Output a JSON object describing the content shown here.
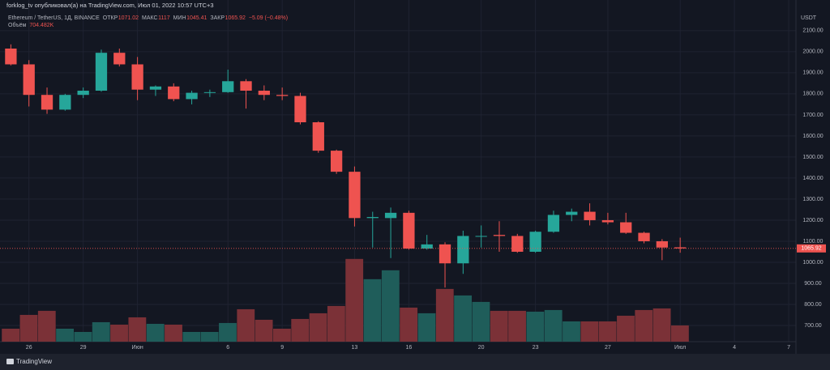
{
  "chart_data": {
    "type": "candlestick",
    "header": "forklog_tv опубликовал(а) на TradingView.com, Июл 01, 2022 10:57 UTC+3",
    "symbol": "Ethereum / TetherUS, 1Д, BINANCE",
    "open_label": "ОТКР",
    "high_label": "МАКС",
    "low_label": "МИН",
    "close_label": "ЗАКР",
    "change_label": "−5.09 (−0.48%)",
    "currency": "USDT",
    "brand": "TradingView",
    "x": [
      0,
      1,
      2,
      3,
      4,
      5,
      6,
      7,
      8,
      9,
      10,
      11,
      12,
      13,
      14,
      15,
      16,
      17,
      18,
      19,
      20,
      21,
      22,
      23,
      24,
      25,
      26,
      27,
      28,
      29,
      30,
      31,
      32,
      33,
      34,
      35,
      36,
      37
    ],
    "open": [
      2015,
      1940,
      1795,
      1725,
      1795,
      1815,
      1995,
      1940,
      1820,
      1835,
      1775,
      1805,
      1808,
      1860,
      1815,
      1795,
      1790,
      1665,
      1530,
      1430,
      1210,
      1210,
      1235,
      1065,
      1085,
      995,
      1125,
      1130,
      1125,
      1050,
      1145,
      1225,
      1240,
      1200,
      1190,
      1140,
      1100,
      1071.02
    ],
    "high": [
      2035,
      1960,
      1830,
      1800,
      1830,
      2010,
      2015,
      1975,
      1840,
      1850,
      1815,
      1820,
      1915,
      1870,
      1840,
      1830,
      1805,
      1670,
      1535,
      1455,
      1240,
      1260,
      1245,
      1130,
      1095,
      1150,
      1175,
      1195,
      1135,
      1150,
      1245,
      1255,
      1280,
      1235,
      1235,
      1145,
      1110,
      1117
    ],
    "low": [
      1935,
      1740,
      1705,
      1720,
      1780,
      1810,
      1930,
      1770,
      1790,
      1765,
      1750,
      1785,
      1805,
      1730,
      1770,
      1770,
      1655,
      1520,
      1420,
      1170,
      1070,
      1020,
      1060,
      1060,
      880,
      945,
      1070,
      1050,
      1045,
      1045,
      1140,
      1195,
      1175,
      1180,
      1135,
      1090,
      1010,
      1045.41
    ],
    "close": [
      1940,
      1795,
      1725,
      1795,
      1815,
      1995,
      1940,
      1820,
      1835,
      1775,
      1805,
      1808,
      1860,
      1815,
      1795,
      1790,
      1665,
      1530,
      1430,
      1210,
      1215,
      1235,
      1065,
      1085,
      995,
      1125,
      1125,
      1125,
      1050,
      1145,
      1225,
      1240,
      1200,
      1190,
      1140,
      1100,
      1070,
      1065.92
    ],
    "volume": {
      "name": "Объём",
      "values": [
        563,
        1162,
        1338,
        563,
        422,
        845,
        739,
        1056,
        774,
        739,
        422,
        422,
        810,
        1408,
        950,
        563,
        986,
        1232,
        1549,
        3590,
        2711,
        3098,
        1478,
        1232,
        2288,
        2006,
        1725,
        1338,
        1338,
        1302,
        1373,
        880,
        880,
        880,
        1126,
        1373,
        1443,
        704.482
      ],
      "value_labels": [
        null,
        null,
        null,
        null,
        null,
        null,
        null,
        null,
        null,
        null,
        null,
        null,
        null,
        null,
        null,
        null,
        null,
        null,
        null,
        null,
        null,
        null,
        null,
        null,
        null,
        null,
        null,
        null,
        null,
        null,
        null,
        null,
        null,
        null,
        null,
        null,
        null,
        "704.482K"
      ]
    },
    "up_color": "#26a69a",
    "down_color": "#ef5350",
    "volume_up_color": "#1f5d5a",
    "volume_down_color": "#7b3137",
    "xlim": [
      -0.6,
      43.4
    ],
    "xticks": [
      {
        "value": 1,
        "label": "26"
      },
      {
        "value": 4,
        "label": "29"
      },
      {
        "value": 7,
        "label": "Июн"
      },
      {
        "value": 12,
        "label": "6"
      },
      {
        "value": 15,
        "label": "9"
      },
      {
        "value": 19,
        "label": "13"
      },
      {
        "value": 22,
        "label": "16"
      },
      {
        "value": 26,
        "label": "20"
      },
      {
        "value": 29,
        "label": "23"
      },
      {
        "value": 33,
        "label": "27"
      },
      {
        "value": 37,
        "label": "Июл"
      },
      {
        "value": 40,
        "label": "4"
      },
      {
        "value": 43,
        "label": "7"
      }
    ],
    "ylim": [
      623,
      2188
    ],
    "yticks": [
      {
        "value": 700,
        "label": "700.00"
      },
      {
        "value": 800,
        "label": "800.00"
      },
      {
        "value": 900,
        "label": "900.00"
      },
      {
        "value": 1000,
        "label": "1000.00"
      },
      {
        "value": 1100,
        "label": "1100.00"
      },
      {
        "value": 1200,
        "label": "1200.00"
      },
      {
        "value": 1300,
        "label": "1300.00"
      },
      {
        "value": 1400,
        "label": "1400.00"
      },
      {
        "value": 1500,
        "label": "1500.00"
      },
      {
        "value": 1600,
        "label": "1600.00"
      },
      {
        "value": 1700,
        "label": "1700.00"
      },
      {
        "value": 1800,
        "label": "1800.00"
      },
      {
        "value": 1900,
        "label": "1900.00"
      },
      {
        "value": 2000,
        "label": "2000.00"
      },
      {
        "value": 2100,
        "label": "2100.00"
      }
    ],
    "y2lim": [
      0,
      14300
    ],
    "grid": true
  }
}
